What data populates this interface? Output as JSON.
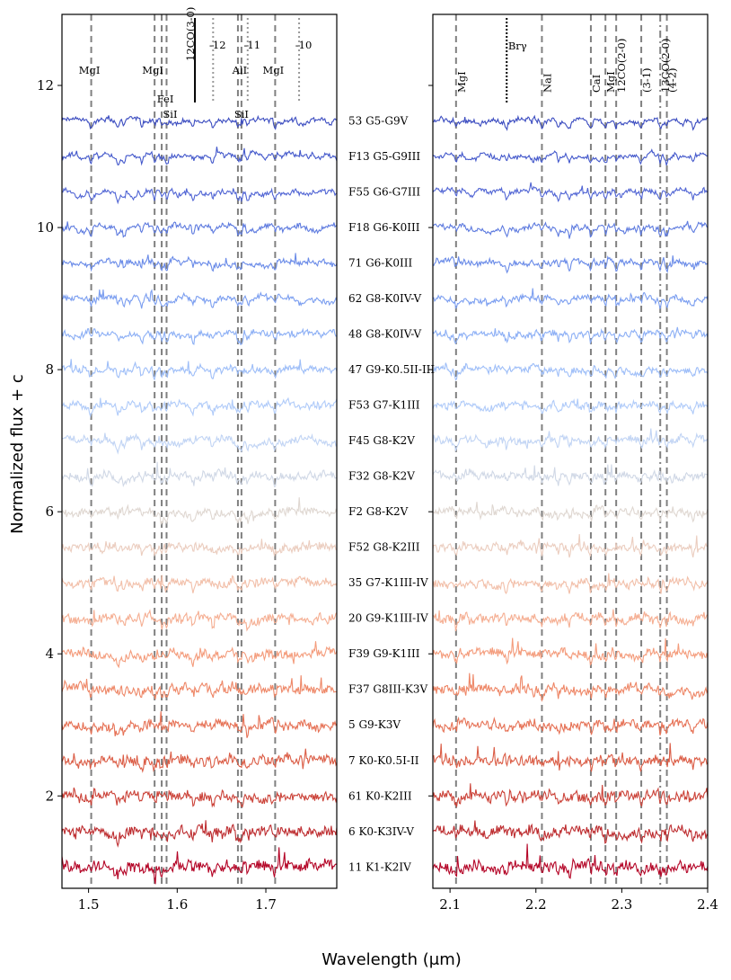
{
  "chart_data": {
    "type": "line",
    "xlabel": "Wavelength (μm)",
    "ylabel": "Normalized flux + c",
    "panels": [
      {
        "name": "H-band",
        "xlim": [
          1.47,
          1.78
        ],
        "xticks": [
          1.5,
          1.6,
          1.7
        ],
        "xtick_labels": [
          "1.5",
          "1.6",
          "1.7"
        ]
      },
      {
        "name": "K-band",
        "xlim": [
          2.08,
          2.4
        ],
        "xticks": [
          2.1,
          2.2,
          2.3,
          2.4
        ],
        "xtick_labels": [
          "2.1",
          "2.2",
          "2.3",
          "2.4"
        ]
      }
    ],
    "ylim": [
      0.7,
      13.0
    ],
    "yticks": [
      2,
      4,
      6,
      8,
      10,
      12
    ],
    "ytick_labels": [
      "2",
      "4",
      "6",
      "8",
      "10",
      "12"
    ],
    "series": [
      {
        "name": "53 G5-G9V",
        "offset": 11.5,
        "color": "#3b4cc0"
      },
      {
        "name": "F13 G5-G9III",
        "offset": 11.0,
        "color": "#4358cb"
      },
      {
        "name": "F55 G6-G7III",
        "offset": 10.5,
        "color": "#5165d4"
      },
      {
        "name": "F18 G6-K0III",
        "offset": 10.0,
        "color": "#5e7bdf"
      },
      {
        "name": "71 G6-K0III",
        "offset": 9.5,
        "color": "#6a8be8"
      },
      {
        "name": "62 G8-K0IV-V",
        "offset": 9.0,
        "color": "#7b9ef0"
      },
      {
        "name": "48 G8-K0IV-V",
        "offset": 8.5,
        "color": "#8caff5"
      },
      {
        "name": "47 G9-K0.5II-III",
        "offset": 8.0,
        "color": "#9ebef8"
      },
      {
        "name": "F53 G7-K1III",
        "offset": 7.5,
        "color": "#b0cbf9"
      },
      {
        "name": "F45 G8-K2V",
        "offset": 7.0,
        "color": "#c1d4f4"
      },
      {
        "name": "F32 G8-K2V",
        "offset": 6.5,
        "color": "#d0d8e6"
      },
      {
        "name": "F2 G8-K2V",
        "offset": 6.0,
        "color": "#dfd7d1"
      },
      {
        "name": "F52 G8-K2III",
        "offset": 5.5,
        "color": "#ebcdbf"
      },
      {
        "name": "35 G7-K1III-IV",
        "offset": 5.0,
        "color": "#f2bfa9"
      },
      {
        "name": "20 G9-K1III-IV",
        "offset": 4.5,
        "color": "#f5ae92"
      },
      {
        "name": "F39 G9-K1III",
        "offset": 4.0,
        "color": "#f49c7c"
      },
      {
        "name": "F37 G8III-K3V",
        "offset": 3.5,
        "color": "#ee8767"
      },
      {
        "name": "5 G9-K3V",
        "offset": 3.0,
        "color": "#e67256"
      },
      {
        "name": "7 K0-K0.5I-II",
        "offset": 2.5,
        "color": "#db5d46"
      },
      {
        "name": "61 K0-K2III",
        "offset": 2.0,
        "color": "#cb4238"
      },
      {
        "name": "6 K0-K3IV-V",
        "offset": 1.5,
        "color": "#bd2c2f"
      },
      {
        "name": "11 K1-K2IV",
        "offset": 1.0,
        "color": "#b40426"
      }
    ],
    "h_lines": [
      {
        "x": 1.503,
        "label": "MgI",
        "level": 1
      },
      {
        "x": 1.5745,
        "label": "MgI",
        "level": 1
      },
      {
        "x": 1.5825,
        "label": "FeI",
        "level": 2
      },
      {
        "x": 1.588,
        "label": "SiI",
        "level": 3
      },
      {
        "x": 1.6685,
        "label": "SiI",
        "level": 3
      },
      {
        "x": 1.6725,
        "label": "AlI",
        "level": 1
      },
      {
        "x": 1.7105,
        "label": "MgI",
        "level": 1
      }
    ],
    "h_co_lines": [
      {
        "x": 1.62,
        "label": "12CO(3-0)",
        "solid": true
      },
      {
        "x": 1.6405,
        "label": "-12",
        "solid": false
      },
      {
        "x": 1.6795,
        "label": "-11",
        "solid": false
      },
      {
        "x": 1.7375,
        "label": "-10",
        "solid": false
      }
    ],
    "k_lines": [
      {
        "x": 2.107,
        "label": "MgI",
        "style": "dashed"
      },
      {
        "x": 2.166,
        "label": "Brγ",
        "style": "dotted"
      },
      {
        "x": 2.207,
        "label": "NaI",
        "style": "dashed"
      },
      {
        "x": 2.264,
        "label": "CaI",
        "style": "dashed"
      },
      {
        "x": 2.281,
        "label": "MgI",
        "style": "dashed"
      },
      {
        "x": 2.2935,
        "label": "12CO(2-0)",
        "style": "dashed"
      },
      {
        "x": 2.3227,
        "label": "(3-1)",
        "style": "dashed"
      },
      {
        "x": 2.3448,
        "label": "13CO(2-0)",
        "style": "dashdot"
      },
      {
        "x": 2.3525,
        "label": "(4-2)",
        "style": "dashed"
      }
    ]
  }
}
